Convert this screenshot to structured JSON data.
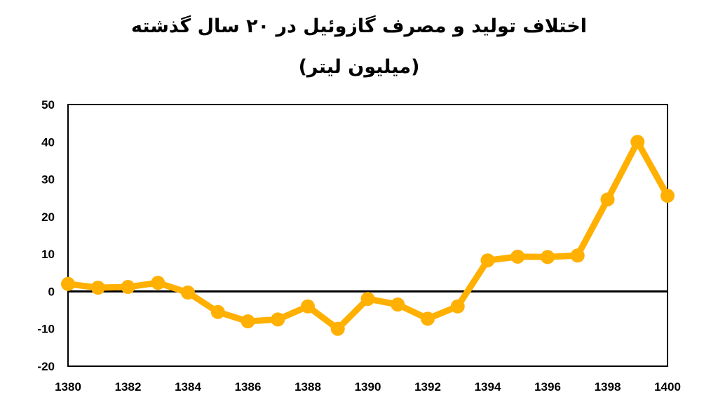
{
  "chart_data": {
    "type": "line",
    "title": "اختلاف تولید و مصرف گازوئیل در ۲۰ سال گذشته",
    "subtitle": "(میلیون لیتر)",
    "xlabel": "",
    "ylabel": "",
    "x": [
      1380,
      1381,
      1382,
      1383,
      1384,
      1385,
      1386,
      1387,
      1388,
      1389,
      1390,
      1391,
      1392,
      1393,
      1394,
      1395,
      1396,
      1397,
      1398,
      1399,
      1400
    ],
    "series": [
      {
        "values": [
          2,
          1,
          1.2,
          2.3,
          -0.3,
          -5.5,
          -8,
          -7.5,
          -4,
          -10,
          -2,
          -3.5,
          -7.3,
          -4,
          8.3,
          9.3,
          9.2,
          9.6,
          24.6,
          40,
          25.6
        ]
      }
    ],
    "xticks": [
      1380,
      1382,
      1384,
      1386,
      1388,
      1390,
      1392,
      1394,
      1396,
      1398,
      1400
    ],
    "yticks": [
      50,
      40,
      30,
      20,
      10,
      0,
      -10,
      -20
    ],
    "xlim": [
      1380,
      1400
    ],
    "ylim": [
      -20,
      50
    ],
    "grid": false,
    "legend": "none",
    "colors": {
      "line": "#FFB000",
      "axis": "#000000",
      "zero_line": "#000000"
    }
  }
}
